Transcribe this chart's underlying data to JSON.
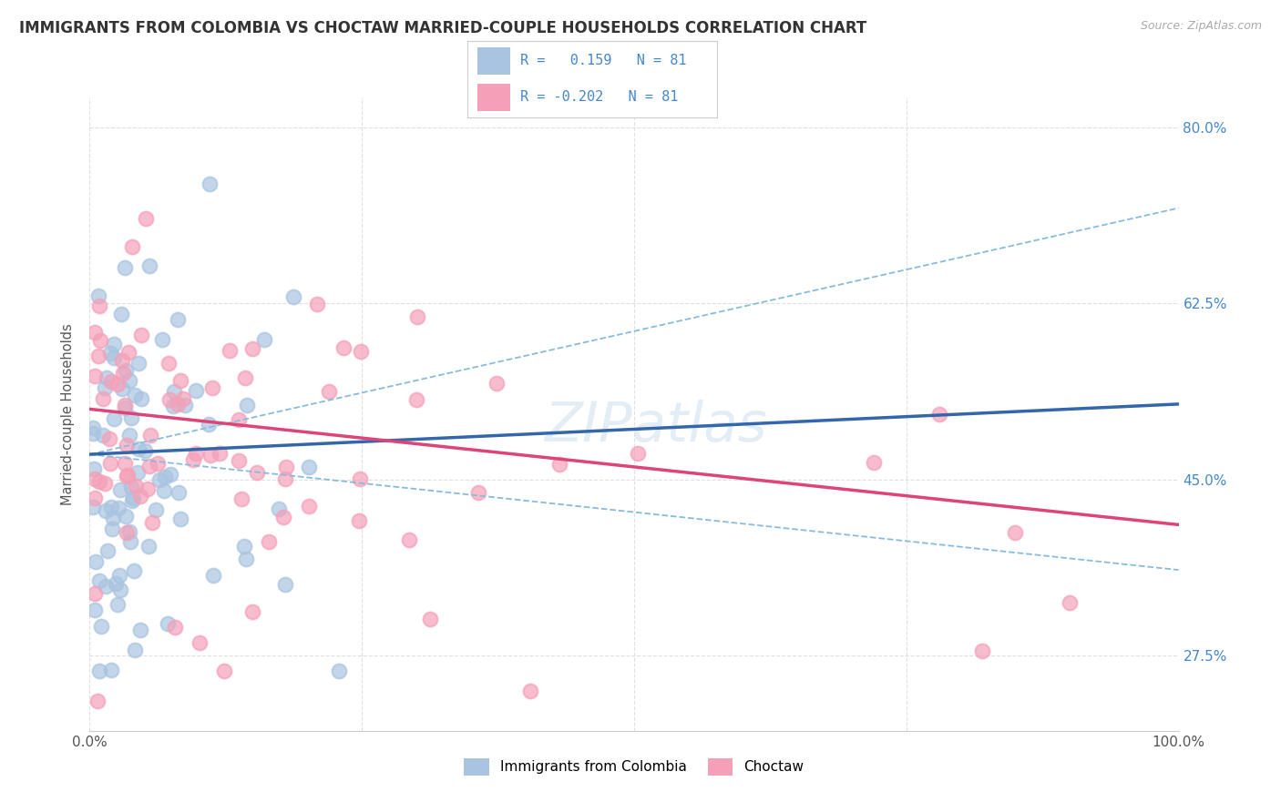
{
  "title": "IMMIGRANTS FROM COLOMBIA VS CHOCTAW MARRIED-COUPLE HOUSEHOLDS CORRELATION CHART",
  "source_text": "Source: ZipAtlas.com",
  "ylabel": "Married-couple Households",
  "series1_label": "Immigrants from Colombia",
  "series2_label": "Choctaw",
  "r1": 0.159,
  "r2": -0.202,
  "n1": 81,
  "n2": 81,
  "color1": "#a8c4e0",
  "color2": "#f4a0b8",
  "line_color1": "#3366aa",
  "line_color2": "#dd4477",
  "dashed_color": "#88bbdd",
  "xlim": [
    0.0,
    100.0
  ],
  "ylim": [
    20.0,
    83.0
  ],
  "yticks": [
    27.5,
    45.0,
    62.5,
    80.0
  ],
  "xticks": [
    0.0,
    25.0,
    50.0,
    75.0,
    100.0
  ],
  "ytick_labels": [
    "27.5%",
    "45.0%",
    "62.5%",
    "80.0%"
  ],
  "watermark": "ZIPatlas",
  "background_color": "#ffffff",
  "grid_color": "#e0e0e0",
  "blue_trend_x0": 47.5,
  "blue_trend_x100": 52.5,
  "pink_trend_x0": 52.0,
  "pink_trend_x100": 40.5,
  "blue_ci_upper_x0": 47.5,
  "blue_ci_upper_x100": 72.0,
  "blue_ci_lower_x0": 47.5,
  "blue_ci_lower_x100": 36.0
}
